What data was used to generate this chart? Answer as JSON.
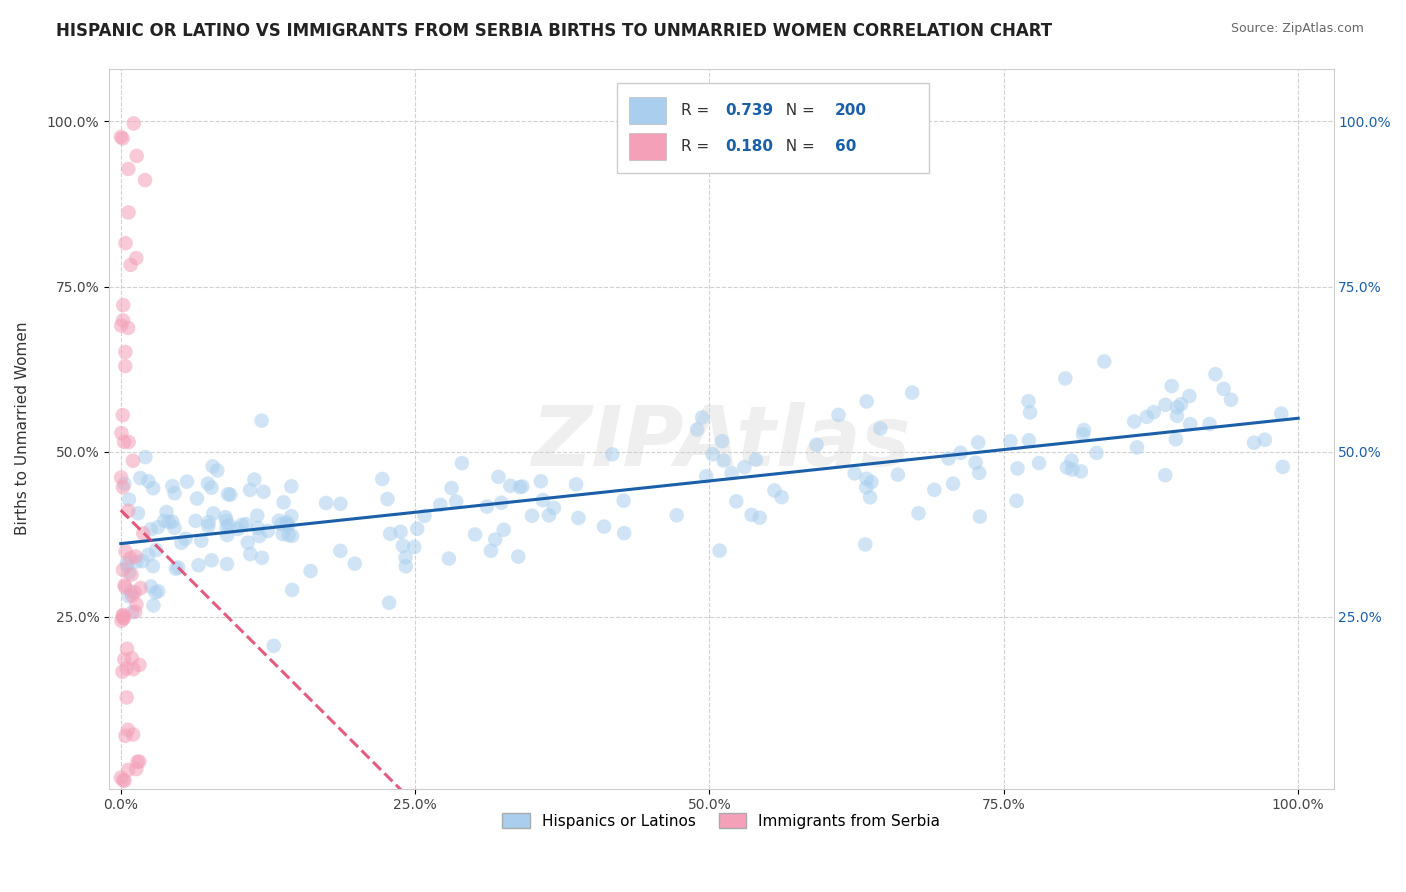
{
  "title": "HISPANIC OR LATINO VS IMMIGRANTS FROM SERBIA BIRTHS TO UNMARRIED WOMEN CORRELATION CHART",
  "source": "Source: ZipAtlas.com",
  "ylabel": "Births to Unmarried Women",
  "R_blue": 0.739,
  "N_blue": 200,
  "R_pink": 0.18,
  "N_pink": 60,
  "blue_color": "#aacfee",
  "pink_color": "#f4a0b8",
  "trendline_blue": "#1a5fa8",
  "trendline_pink": "#e0406a",
  "legend_label_blue": "Hispanics or Latinos",
  "legend_label_pink": "Immigrants from Serbia",
  "watermark_text": "ZIPAtlas",
  "background_color": "#ffffff",
  "grid_color": "#cccccc",
  "title_fontsize": 12,
  "axis_label_fontsize": 11,
  "tick_fontsize": 10,
  "number_color": "#1a5fa8"
}
